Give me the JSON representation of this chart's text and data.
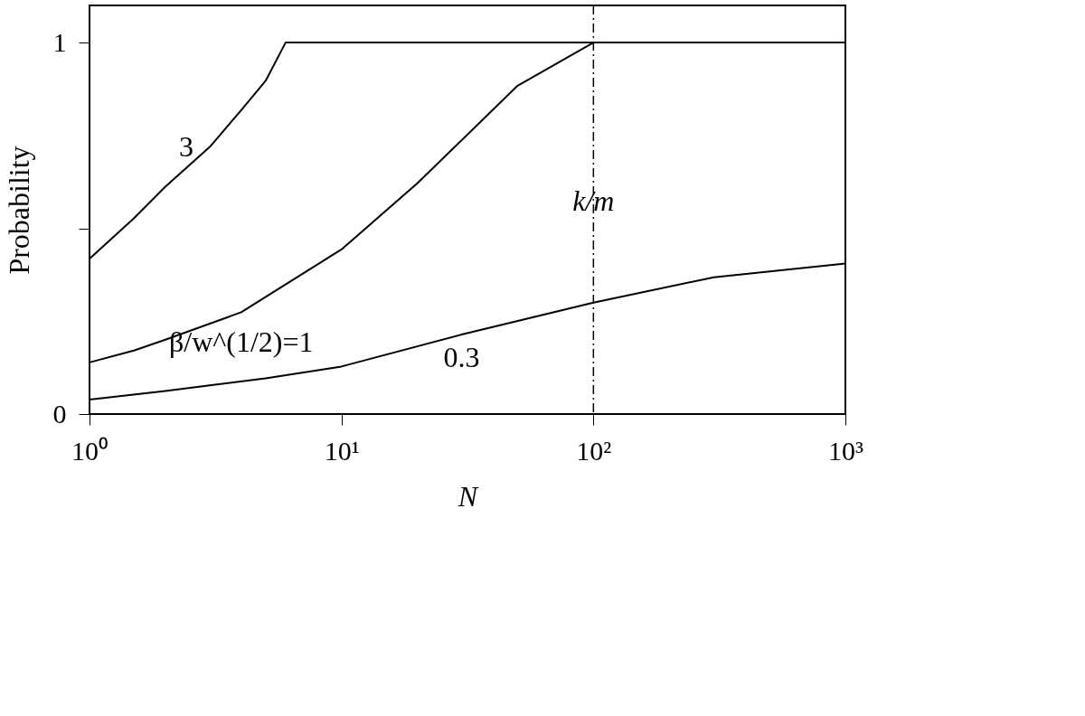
{
  "chart_data": {
    "type": "line",
    "xlabel": "N",
    "ylabel": "Probability",
    "log": "x",
    "grid": false,
    "xlim": [
      1,
      1000
    ],
    "xticks": [
      {
        "value": 1,
        "label": "10⁰"
      },
      {
        "value": 10,
        "label": "10¹"
      },
      {
        "value": 100,
        "label": "10²"
      },
      {
        "value": 1000,
        "label": "10³"
      }
    ],
    "ylim": [
      0,
      1.1
    ],
    "yticks": [
      0,
      {
        "value": 0.5,
        "label": null
      },
      1
    ],
    "series": [
      {
        "name": "3",
        "color": "#000000",
        "x": [
          1,
          1.5,
          2,
          3,
          4,
          5,
          6,
          1000
        ],
        "values": [
          0.418,
          0.527,
          0.612,
          0.719,
          0.818,
          0.897,
          1.0,
          1.0
        ]
      },
      {
        "name": "β/w^(1/2)=1",
        "color": "#000000",
        "x": [
          1,
          1.5,
          2,
          4,
          10,
          20,
          50,
          100,
          1000
        ],
        "values": [
          0.139,
          0.171,
          0.2,
          0.274,
          0.443,
          0.621,
          0.884,
          1.0,
          1.0
        ]
      },
      {
        "name": "0.3",
        "color": "#000000",
        "x": [
          1,
          2,
          3,
          5,
          10,
          30,
          100,
          300,
          1000
        ],
        "values": [
          0.039,
          0.062,
          0.077,
          0.096,
          0.128,
          0.214,
          0.3,
          0.368,
          0.405
        ]
      }
    ],
    "ref_lines": [
      {
        "axis": "x",
        "value": 100,
        "label": "k/m",
        "color": "#000000",
        "line_style": "dashdot"
      }
    ]
  }
}
